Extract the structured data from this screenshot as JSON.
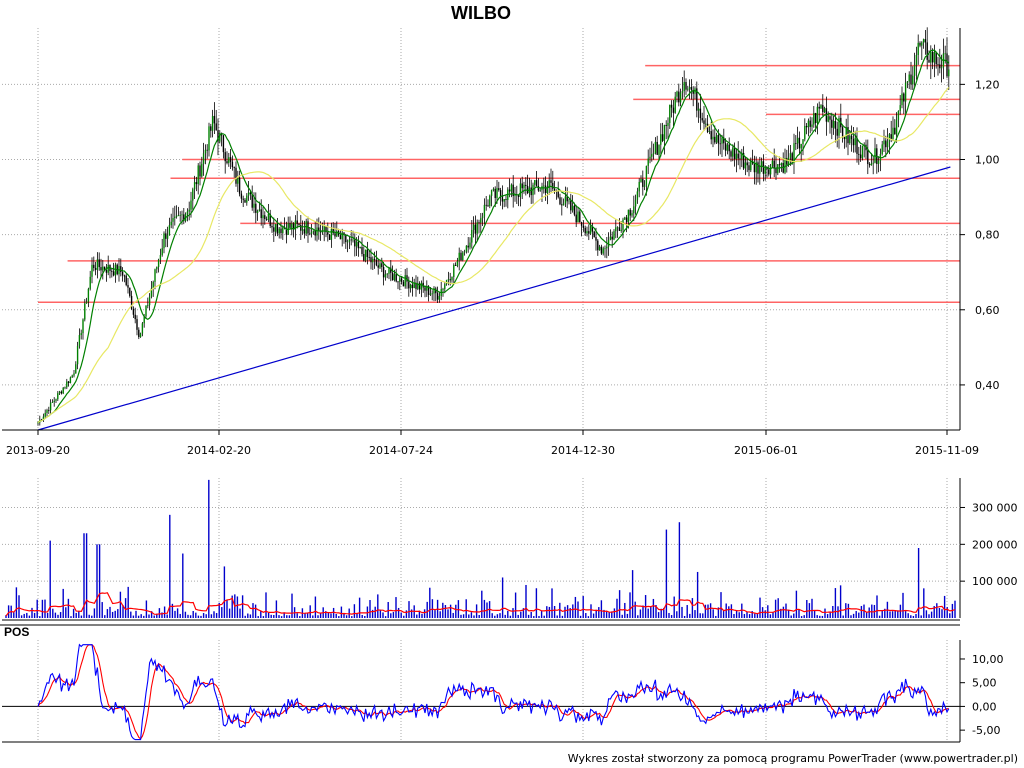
{
  "chart_data": [
    {
      "type": "candlestick",
      "title": "WILBO",
      "x_ticks": [
        "2013-09-20",
        "2014-02-20",
        "2014-07-24",
        "2014-12-30",
        "2015-06-01",
        "2015-11-09"
      ],
      "y_ticks": [
        "0,40",
        "0,60",
        "0,80",
        "1,00",
        "1,20"
      ],
      "ylim": [
        0.28,
        1.35
      ],
      "grid": true,
      "price_anchors": [
        {
          "date": "2013-09-20",
          "close": 0.3
        },
        {
          "date": "2013-10-20",
          "close": 0.43
        },
        {
          "date": "2013-11-05",
          "close": 0.72
        },
        {
          "date": "2013-12-01",
          "close": 0.7
        },
        {
          "date": "2013-12-15",
          "close": 0.53
        },
        {
          "date": "2014-01-05",
          "close": 0.8
        },
        {
          "date": "2014-01-25",
          "close": 0.87
        },
        {
          "date": "2014-02-15",
          "close": 1.1
        },
        {
          "date": "2014-03-10",
          "close": 0.92
        },
        {
          "date": "2014-04-10",
          "close": 0.82
        },
        {
          "date": "2014-05-10",
          "close": 0.82
        },
        {
          "date": "2014-06-10",
          "close": 0.78
        },
        {
          "date": "2014-07-10",
          "close": 0.7
        },
        {
          "date": "2014-08-25",
          "close": 0.64
        },
        {
          "date": "2014-09-10",
          "close": 0.72
        },
        {
          "date": "2014-10-10",
          "close": 0.9
        },
        {
          "date": "2014-11-10",
          "close": 0.92
        },
        {
          "date": "2014-12-01",
          "close": 0.93
        },
        {
          "date": "2014-12-30",
          "close": 0.83
        },
        {
          "date": "2015-01-15",
          "close": 0.76
        },
        {
          "date": "2015-02-10",
          "close": 0.88
        },
        {
          "date": "2015-03-10",
          "close": 1.1
        },
        {
          "date": "2015-03-25",
          "close": 1.22
        },
        {
          "date": "2015-04-20",
          "close": 1.05
        },
        {
          "date": "2015-05-20",
          "close": 0.98
        },
        {
          "date": "2015-06-20",
          "close": 0.99
        },
        {
          "date": "2015-07-20",
          "close": 1.14
        },
        {
          "date": "2015-08-15",
          "close": 1.05
        },
        {
          "date": "2015-09-05",
          "close": 1.0
        },
        {
          "date": "2015-09-25",
          "close": 1.1
        },
        {
          "date": "2015-10-15",
          "close": 1.3
        },
        {
          "date": "2015-11-01",
          "close": 1.26
        },
        {
          "date": "2015-11-12",
          "close": 1.25
        }
      ],
      "horizontal_levels": [
        {
          "value": 0.62,
          "from": "2013-09-20"
        },
        {
          "value": 0.73,
          "from": "2013-10-15"
        },
        {
          "value": 0.83,
          "from": "2014-03-10"
        },
        {
          "value": 0.95,
          "from": "2014-01-10"
        },
        {
          "value": 1.0,
          "from": "2014-01-20"
        },
        {
          "value": 1.12,
          "from": "2015-06-01"
        },
        {
          "value": 1.16,
          "from": "2015-02-10"
        },
        {
          "value": 1.25,
          "from": "2015-02-20"
        }
      ],
      "trendline": {
        "from": {
          "date": "2013-09-20",
          "value": 0.28
        },
        "to": {
          "date": "2015-11-12",
          "value": 0.98
        }
      },
      "moving_averages": [
        {
          "color": "#008000",
          "period": 5
        },
        {
          "color": "#e8e864",
          "period": 20
        }
      ],
      "colors": {
        "candle": "#000000",
        "up_candle": "#008000",
        "level": "#ff6464",
        "trend": "#0000cc"
      }
    },
    {
      "type": "bar",
      "y_ticks": [
        "100 000",
        "200 000",
        "300 000"
      ],
      "ylim": [
        0,
        380000
      ],
      "volume_spikes": [
        {
          "date": "2013-10-01",
          "value": 210000
        },
        {
          "date": "2013-10-30",
          "value": 230000
        },
        {
          "date": "2013-11-10",
          "value": 200000
        },
        {
          "date": "2014-01-10",
          "value": 280000
        },
        {
          "date": "2014-01-20",
          "value": 175000
        },
        {
          "date": "2014-02-12",
          "value": 375000
        },
        {
          "date": "2014-02-25",
          "value": 140000
        },
        {
          "date": "2014-10-20",
          "value": 110000
        },
        {
          "date": "2015-02-10",
          "value": 130000
        },
        {
          "date": "2015-03-10",
          "value": 240000
        },
        {
          "date": "2015-03-20",
          "value": 260000
        },
        {
          "date": "2015-04-05",
          "value": 125000
        },
        {
          "date": "2015-10-15",
          "value": 190000
        }
      ],
      "colors": {
        "bars": "#0000cc",
        "average": "#ff0000"
      }
    },
    {
      "type": "line",
      "name": "POS",
      "y_ticks": [
        "-5,00",
        "0,00",
        "5,00",
        "10,00"
      ],
      "ylim": [
        -7.5,
        14
      ],
      "colors": {
        "pos": "#0000ff",
        "signal": "#ff0000",
        "zero": "#000000"
      }
    }
  ],
  "footer": "Wykres został stworzony za pomocą programu PowerTrader (www.powertrader.pl)"
}
